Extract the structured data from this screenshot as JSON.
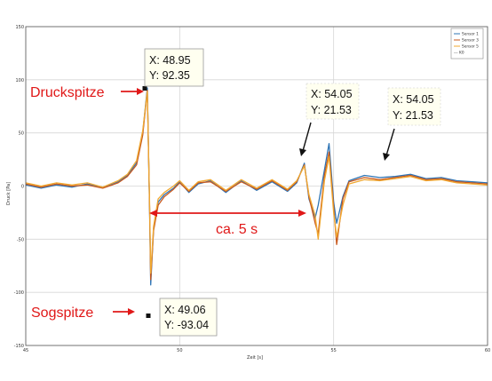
{
  "chart_data": {
    "type": "line",
    "title": "",
    "xlabel": "Zeit [s]",
    "ylabel": "Druck [Pa]",
    "xlim": [
      45,
      60
    ],
    "ylim": [
      -150,
      150
    ],
    "xticks": [
      "45",
      "50",
      "55",
      "60"
    ],
    "yticks": [
      "150",
      "100",
      "50",
      "0",
      "-50",
      "-100",
      "-150"
    ],
    "grid": true,
    "legend_position": "top-right",
    "series": [
      {
        "name": "Sensor 1",
        "color": "#2f75b5",
        "x": [
          45,
          45.5,
          46,
          46.5,
          47,
          47.5,
          48,
          48.3,
          48.6,
          48.8,
          48.95,
          49.02,
          49.06,
          49.15,
          49.3,
          49.5,
          49.8,
          50,
          50.3,
          50.6,
          51,
          51.5,
          52,
          52.5,
          53,
          53.5,
          53.8,
          54.05,
          54.2,
          54.4,
          54.5,
          54.7,
          54.85,
          55,
          55.1,
          55.3,
          55.5,
          56,
          56.5,
          57,
          57.5,
          58,
          58.5,
          59,
          59.5,
          60
        ],
        "y": [
          1,
          -2,
          1,
          -1,
          2,
          -1,
          4,
          10,
          22,
          50,
          92.35,
          -20,
          -93.04,
          -40,
          -15,
          -8,
          -2,
          4,
          -6,
          2,
          5,
          -6,
          5,
          -4,
          4,
          -5,
          3,
          21.53,
          -12,
          -30,
          -18,
          15,
          40,
          -15,
          -35,
          -10,
          5,
          10,
          8,
          9,
          11,
          7,
          8,
          5,
          4,
          3
        ]
      },
      {
        "name": "Sensor 3",
        "color": "#c8591e",
        "x": [
          45,
          45.5,
          46,
          46.5,
          47,
          47.5,
          48,
          48.3,
          48.6,
          48.8,
          48.95,
          49.02,
          49.06,
          49.15,
          49.3,
          49.5,
          49.8,
          50,
          50.3,
          50.6,
          51,
          51.5,
          52,
          52.5,
          53,
          53.5,
          53.8,
          54.05,
          54.2,
          54.4,
          54.5,
          54.7,
          54.85,
          55,
          55.1,
          55.3,
          55.5,
          56,
          56.5,
          57,
          57.5,
          58,
          58.5,
          59,
          59.5,
          60
        ],
        "y": [
          2,
          -1,
          2,
          0,
          1,
          -2,
          3,
          9,
          20,
          48,
          90,
          -18,
          -88,
          -42,
          -18,
          -10,
          -3,
          3,
          -5,
          3,
          4,
          -5,
          4,
          -3,
          5,
          -4,
          4,
          20,
          -10,
          -35,
          -45,
          10,
          32,
          -20,
          -55,
          -12,
          4,
          8,
          6,
          8,
          10,
          6,
          7,
          4,
          3,
          2
        ]
      },
      {
        "name": "Sensor 5",
        "color": "#f0a830",
        "x": [
          45,
          45.5,
          46,
          46.5,
          47,
          47.5,
          48,
          48.3,
          48.6,
          48.8,
          48.95,
          49.02,
          49.06,
          49.15,
          49.3,
          49.5,
          49.8,
          50,
          50.3,
          50.6,
          51,
          51.5,
          52,
          52.5,
          53,
          53.5,
          53.8,
          54.05,
          54.2,
          54.4,
          54.5,
          54.7,
          54.85,
          55,
          55.1,
          55.3,
          55.5,
          56,
          56.5,
          57,
          57.5,
          58,
          58.5,
          59,
          59.5,
          60
        ],
        "y": [
          3,
          0,
          3,
          1,
          3,
          -1,
          5,
          11,
          24,
          52,
          89,
          -15,
          -82,
          -38,
          -12,
          -6,
          0,
          5,
          -4,
          4,
          6,
          -4,
          6,
          -2,
          6,
          -3,
          5,
          19,
          -8,
          -28,
          -50,
          5,
          28,
          -25,
          -48,
          -18,
          2,
          6,
          5,
          7,
          9,
          5,
          6,
          3,
          2,
          1
        ]
      },
      {
        "name": "--- K0",
        "color": "#222222",
        "x": [],
        "y": []
      }
    ],
    "datatips": [
      {
        "x_label": "X: 48.95",
        "y_label": "Y: 92.35"
      },
      {
        "x_label": "X: 54.05",
        "y_label": "Y: 21.53"
      },
      {
        "x_label": "X: 54.05",
        "y_label": "Y: 21.53"
      },
      {
        "x_label": "X: 49.06",
        "y_label": "Y: -93.04"
      }
    ],
    "annotations": {
      "peak_label": "Druckspitze",
      "suction_label": "Sogspitze",
      "interval_label": "ca. 5 s"
    },
    "colors": {
      "annotation_red": "#e01818",
      "tip_background": "#fffff0"
    }
  }
}
